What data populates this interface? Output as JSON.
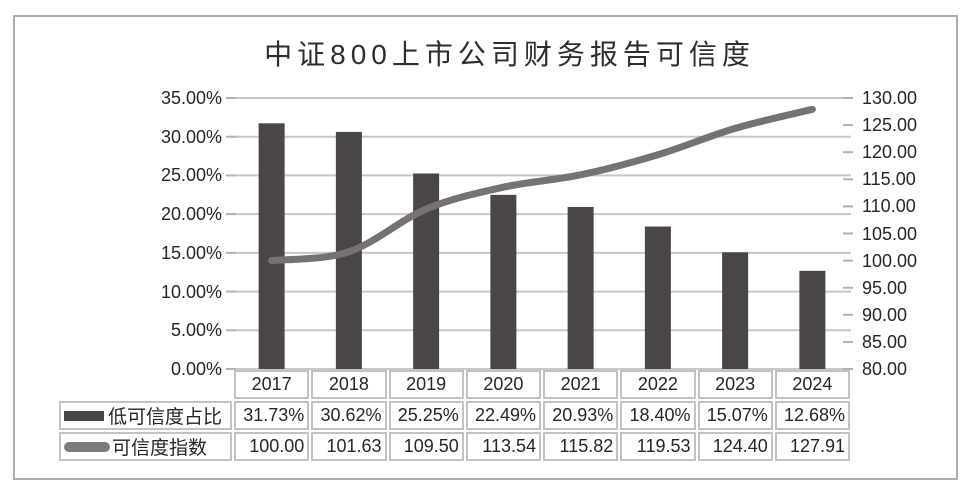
{
  "chart_data": {
    "type": "combo-bar-line",
    "title": "中证800上市公司财务报告可信度",
    "categories": [
      "2017",
      "2018",
      "2019",
      "2020",
      "2021",
      "2022",
      "2023",
      "2024"
    ],
    "series": [
      {
        "name": "低可信度占比",
        "type": "bar",
        "axis": "left",
        "values": [
          31.73,
          30.62,
          25.25,
          22.49,
          20.93,
          18.4,
          15.07,
          12.68
        ],
        "labels": [
          "31.73%",
          "30.62%",
          "25.25%",
          "22.49%",
          "20.93%",
          "18.40%",
          "15.07%",
          "12.68%"
        ],
        "color": "#4a4546"
      },
      {
        "name": "可信度指数",
        "type": "line",
        "axis": "right",
        "values": [
          100.0,
          101.63,
          109.5,
          113.54,
          115.82,
          119.53,
          124.4,
          127.91
        ],
        "labels": [
          "100.00",
          "101.63",
          "109.50",
          "113.54",
          "115.82",
          "119.53",
          "124.40",
          "127.91"
        ],
        "color": "#767172"
      }
    ],
    "left_axis": {
      "min": 0,
      "max": 35,
      "step": 5,
      "tick_labels": [
        "35.00%",
        "30.00%",
        "25.00%",
        "20.00%",
        "15.00%",
        "10.00%",
        "5.00%",
        "0.00%"
      ]
    },
    "right_axis": {
      "min": 80,
      "max": 130,
      "step": 5,
      "tick_labels": [
        "130.00",
        "125.00",
        "120.00",
        "115.00",
        "110.00",
        "105.00",
        "100.00",
        "95.00",
        "90.00",
        "85.00",
        "80.00"
      ]
    },
    "grid": true,
    "legend_position": "data-table-left",
    "colors": {
      "bar": "#4a4546",
      "line": "#767172",
      "gridline": "#c7c7c7",
      "tick": "#b3b3b3",
      "table_border": "#c2c2c2",
      "frame_border": "#aeaeae",
      "text": "#262626"
    }
  }
}
